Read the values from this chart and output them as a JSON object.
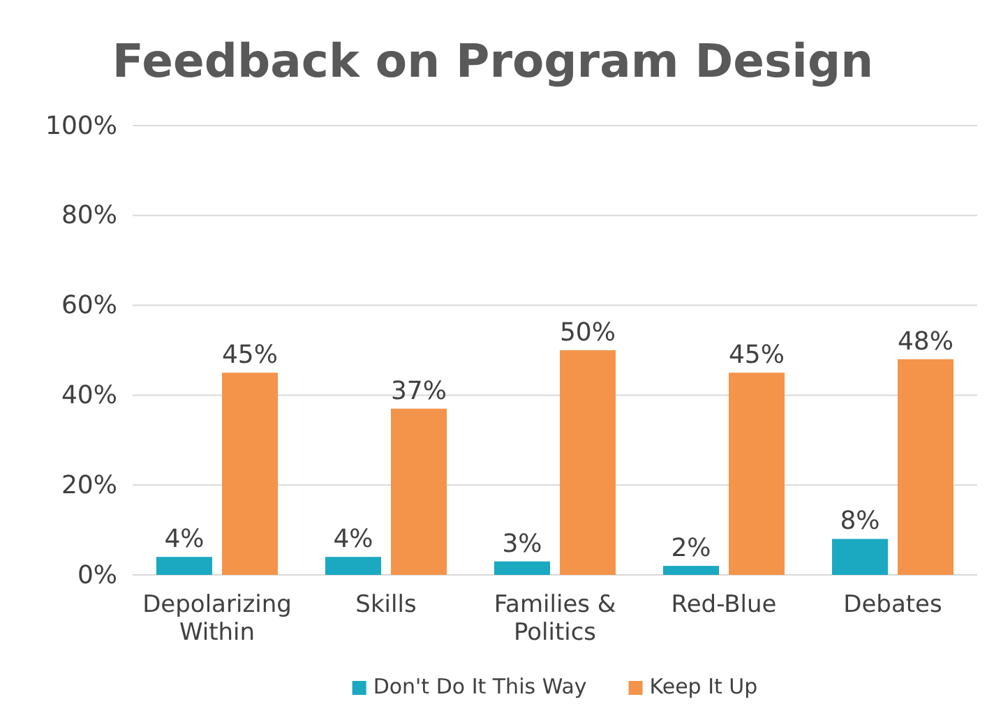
{
  "chart_data": {
    "type": "bar",
    "title": "Feedback on Program Design",
    "categories": [
      "Depolarizing Within",
      "Skills",
      "Families & Politics",
      "Red-Blue",
      "Debates"
    ],
    "series": [
      {
        "name": "Don't Do It This Way",
        "color": "#1aa9c1",
        "values": [
          4,
          4,
          3,
          2,
          8
        ],
        "value_labels": [
          "4%",
          "4%",
          "3%",
          "2%",
          "8%"
        ]
      },
      {
        "name": "Keep It Up",
        "color": "#f4944a",
        "values": [
          45,
          37,
          50,
          45,
          48
        ],
        "value_labels": [
          "45%",
          "37%",
          "50%",
          "45%",
          "48%"
        ]
      }
    ],
    "ylim": [
      0,
      100
    ],
    "yticks": [
      {
        "value": 0,
        "label": "0%"
      },
      {
        "value": 20,
        "label": "20%"
      },
      {
        "value": 40,
        "label": "40%"
      },
      {
        "value": 60,
        "label": "60%"
      },
      {
        "value": 80,
        "label": "80%"
      },
      {
        "value": 100,
        "label": "100%"
      }
    ],
    "grid": "y",
    "legend": "bottom"
  }
}
